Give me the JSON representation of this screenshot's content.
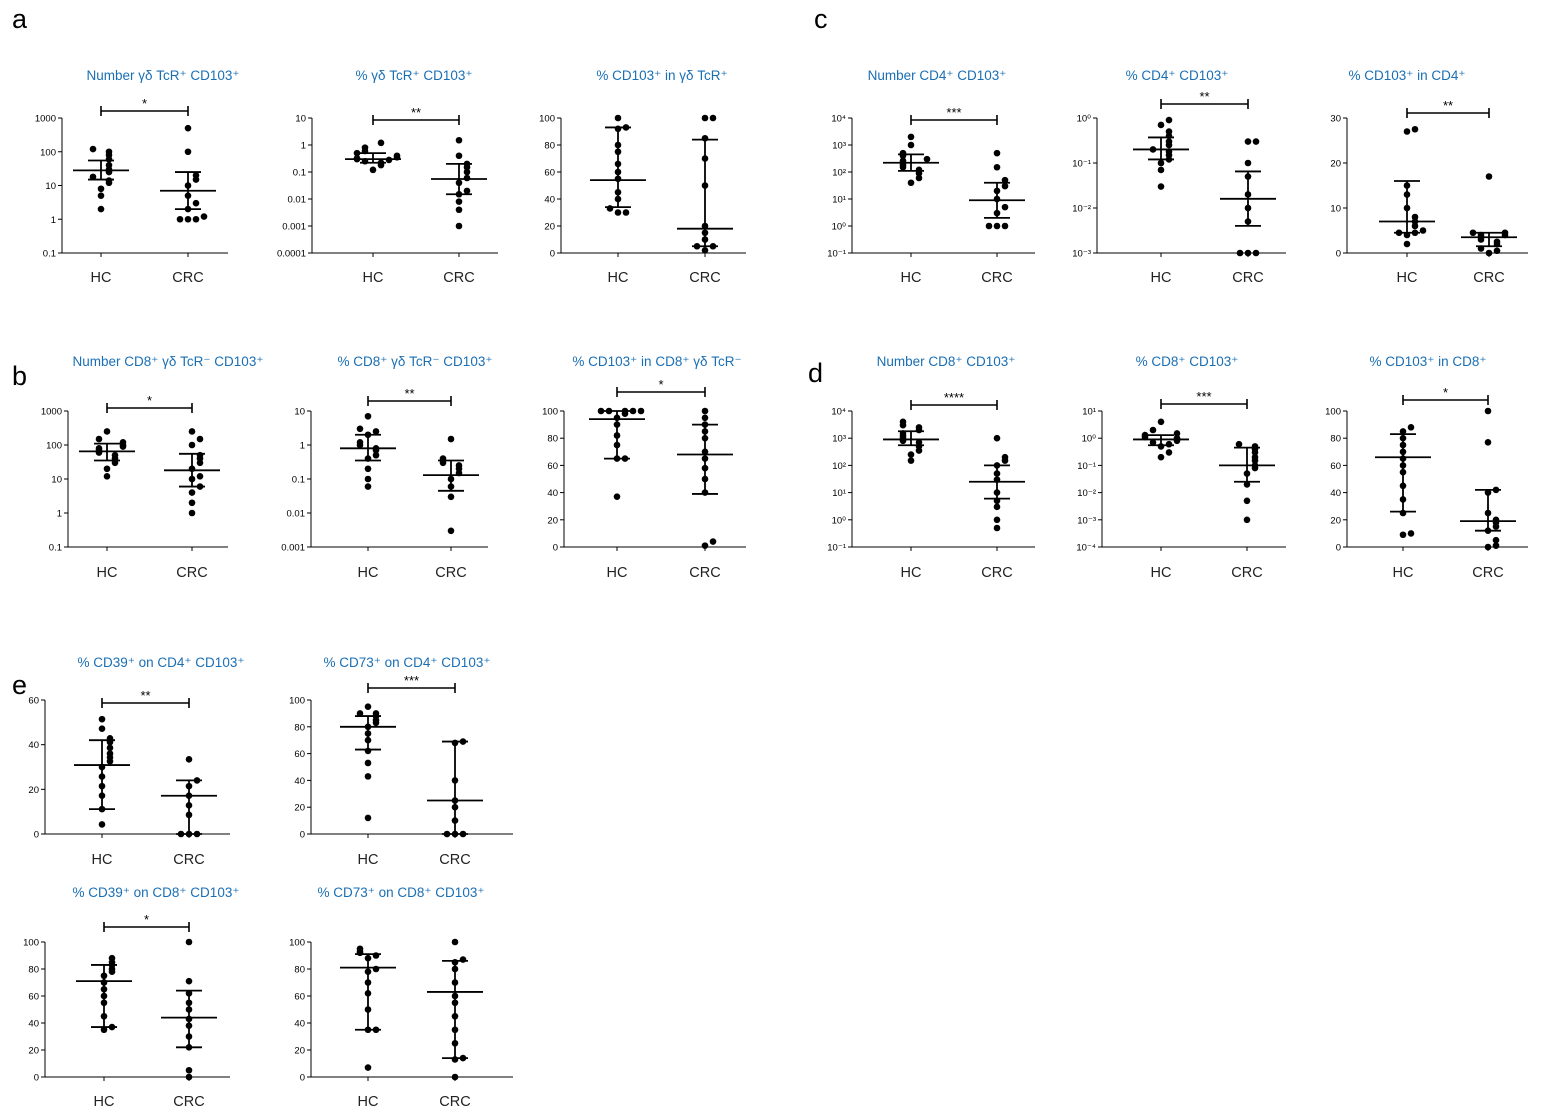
{
  "panel_labels": [
    "a",
    "b",
    "c",
    "d",
    "e"
  ],
  "chart_data": [
    {
      "type": "scatter",
      "panel": "a",
      "title": "Number γδ TcR⁺ CD103⁺",
      "yscale": "log",
      "ylim": [
        0.1,
        1000
      ],
      "yticks": [
        "0.1",
        "1",
        "10",
        "100",
        "1000"
      ],
      "categories": [
        "HC",
        "CRC"
      ],
      "series": [
        {
          "values": [
            2,
            5,
            8,
            12,
            14,
            18,
            25,
            30,
            40,
            60,
            80,
            100,
            120
          ]
        },
        {
          "values": [
            1,
            1,
            1,
            1.2,
            2,
            3,
            5,
            10,
            15,
            20,
            100,
            500
          ]
        }
      ],
      "median": [
        28,
        7
      ],
      "iqr": [
        [
          15,
          55
        ],
        [
          2,
          25
        ]
      ],
      "significance": "*"
    },
    {
      "type": "scatter",
      "panel": "a",
      "title": "% γδ TcR⁺ CD103⁺",
      "yscale": "log",
      "ylim": [
        0.0001,
        10
      ],
      "yticks": [
        "0.0001",
        "0.001",
        "0.01",
        "0.1",
        "1",
        "10"
      ],
      "categories": [
        "HC",
        "CRC"
      ],
      "series": [
        {
          "values": [
            0.12,
            0.18,
            0.22,
            0.25,
            0.28,
            0.3,
            0.32,
            0.35,
            0.4,
            0.5,
            0.6,
            0.8,
            1.2
          ]
        },
        {
          "values": [
            0.001,
            0.004,
            0.008,
            0.015,
            0.02,
            0.04,
            0.06,
            0.1,
            0.15,
            0.2,
            0.4,
            1.5
          ]
        }
      ],
      "median": [
        0.3,
        0.055
      ],
      "iqr": [
        [
          0.22,
          0.5
        ],
        [
          0.015,
          0.2
        ]
      ],
      "significance": "**"
    },
    {
      "type": "scatter",
      "panel": "a",
      "title": "% CD103⁺ in γδ TcR⁺",
      "yscale": "linear",
      "ylim": [
        0,
        100
      ],
      "yticks": [
        "0",
        "20",
        "40",
        "60",
        "80",
        "100"
      ],
      "categories": [
        "HC",
        "CRC"
      ],
      "series": [
        {
          "values": [
            30,
            30,
            33,
            40,
            45,
            55,
            60,
            66,
            75,
            80,
            92,
            93,
            100
          ]
        },
        {
          "values": [
            2,
            5,
            5,
            10,
            15,
            20,
            50,
            70,
            85,
            100,
            100
          ]
        }
      ],
      "median": [
        54,
        18
      ],
      "iqr": [
        [
          34,
          93
        ],
        [
          5,
          84
        ]
      ],
      "significance": ""
    },
    {
      "type": "scatter",
      "panel": "b",
      "title": "Number CD8⁺ γδ TcR⁻ CD103⁺",
      "yscale": "log",
      "ylim": [
        0.1,
        1000
      ],
      "yticks": [
        "0.1",
        "1",
        "10",
        "100",
        "1000"
      ],
      "categories": [
        "HC",
        "CRC"
      ],
      "series": [
        {
          "values": [
            12,
            20,
            30,
            40,
            50,
            60,
            70,
            80,
            90,
            100,
            120,
            150,
            250
          ]
        },
        {
          "values": [
            1,
            2,
            4,
            6,
            10,
            12,
            20,
            30,
            40,
            50,
            100,
            150,
            250
          ]
        }
      ],
      "median": [
        65,
        18
      ],
      "iqr": [
        [
          35,
          110
        ],
        [
          6,
          55
        ]
      ],
      "significance": "*"
    },
    {
      "type": "scatter",
      "panel": "b",
      "title": "% CD8⁺ γδ TcR⁻ CD103⁺",
      "yscale": "log",
      "ylim": [
        0.001,
        10
      ],
      "yticks": [
        "0.001",
        "0.01",
        "0.1",
        "1",
        "10"
      ],
      "categories": [
        "HC",
        "CRC"
      ],
      "series": [
        {
          "values": [
            0.06,
            0.1,
            0.2,
            0.4,
            0.5,
            0.7,
            0.8,
            1,
            1.2,
            2,
            2.5,
            3,
            7
          ]
        },
        {
          "values": [
            0.003,
            0.03,
            0.06,
            0.1,
            0.15,
            0.2,
            0.25,
            0.3,
            0.35,
            0.4,
            1.5
          ]
        }
      ],
      "median": [
        0.8,
        0.13
      ],
      "iqr": [
        [
          0.35,
          2
        ],
        [
          0.045,
          0.35
        ]
      ],
      "significance": "**"
    },
    {
      "type": "scatter",
      "panel": "b",
      "title": "% CD103⁺ in CD8⁺ γδ TcR⁻",
      "yscale": "linear",
      "ylim": [
        0,
        100
      ],
      "yticks": [
        "0",
        "20",
        "40",
        "60",
        "80",
        "100"
      ],
      "categories": [
        "HC",
        "CRC"
      ],
      "series": [
        {
          "values": [
            37,
            65,
            65,
            75,
            82,
            90,
            95,
            98,
            100,
            100,
            100,
            100,
            100
          ]
        },
        {
          "values": [
            1,
            4,
            40,
            50,
            58,
            65,
            70,
            80,
            85,
            90,
            95,
            100
          ]
        }
      ],
      "median": [
        94,
        68
      ],
      "iqr": [
        [
          65,
          100
        ],
        [
          39,
          90
        ]
      ],
      "significance": "*"
    },
    {
      "type": "scatter",
      "panel": "c",
      "title": "Number CD4⁺ CD103⁺",
      "yscale": "log",
      "ylim": [
        0.1,
        10000
      ],
      "yticks": [
        "10⁻¹",
        "10⁰",
        "10¹",
        "10²",
        "10³",
        "10⁴"
      ],
      "categories": [
        "HC",
        "CRC"
      ],
      "series": [
        {
          "values": [
            40,
            60,
            90,
            120,
            150,
            180,
            220,
            260,
            300,
            400,
            500,
            1000,
            2000
          ]
        },
        {
          "values": [
            1,
            1,
            1,
            3,
            5,
            10,
            20,
            30,
            50,
            150,
            500
          ]
        }
      ],
      "median": [
        220,
        9
      ],
      "iqr": [
        [
          110,
          450
        ],
        [
          2,
          40
        ]
      ],
      "significance": "***"
    },
    {
      "type": "scatter",
      "panel": "c",
      "title": "% CD4⁺ CD103⁺",
      "yscale": "log",
      "ylim": [
        0.001,
        1
      ],
      "yticks": [
        "10⁻³",
        "10⁻²",
        "10⁻¹",
        "10⁰"
      ],
      "categories": [
        "HC",
        "CRC"
      ],
      "series": [
        {
          "values": [
            0.03,
            0.07,
            0.1,
            0.12,
            0.15,
            0.18,
            0.2,
            0.25,
            0.3,
            0.4,
            0.5,
            0.7,
            0.9
          ]
        },
        {
          "values": [
            0.001,
            0.001,
            0.001,
            0.005,
            0.01,
            0.02,
            0.05,
            0.1,
            0.3,
            0.3
          ]
        }
      ],
      "median": [
        0.2,
        0.016
      ],
      "iqr": [
        [
          0.12,
          0.37
        ],
        [
          0.004,
          0.065
        ]
      ],
      "significance": "**"
    },
    {
      "type": "scatter",
      "panel": "c",
      "title": "% CD103⁺ in CD4⁺",
      "yscale": "linear",
      "ylim": [
        0,
        30
      ],
      "yticks": [
        "0",
        "10",
        "20",
        "30"
      ],
      "categories": [
        "HC",
        "CRC"
      ],
      "series": [
        {
          "values": [
            2,
            4,
            4.5,
            4.5,
            5,
            6,
            7,
            8,
            10,
            13,
            15,
            27,
            27.5
          ]
        },
        {
          "values": [
            0,
            0.5,
            1,
            2,
            2.5,
            3,
            3.5,
            4,
            4,
            4.5,
            4.5,
            17
          ]
        }
      ],
      "median": [
        7,
        3.5
      ],
      "iqr": [
        [
          4.5,
          16
        ],
        [
          1.5,
          4.5
        ]
      ],
      "significance": "**"
    },
    {
      "type": "scatter",
      "panel": "d",
      "title": "Number CD8⁺ CD103⁺",
      "yscale": "log",
      "ylim": [
        0.1,
        10000
      ],
      "yticks": [
        "10⁻¹",
        "10⁰",
        "10¹",
        "10²",
        "10³",
        "10⁴"
      ],
      "categories": [
        "HC",
        "CRC"
      ],
      "series": [
        {
          "values": [
            150,
            250,
            350,
            500,
            700,
            800,
            1000,
            1200,
            1500,
            2000,
            2500,
            3000,
            4000
          ]
        },
        {
          "values": [
            0.5,
            1,
            3,
            5,
            10,
            30,
            50,
            100,
            150,
            200,
            1000
          ]
        }
      ],
      "median": [
        900,
        25
      ],
      "iqr": [
        [
          550,
          1800
        ],
        [
          6,
          100
        ]
      ],
      "significance": "****"
    },
    {
      "type": "scatter",
      "panel": "d",
      "title": "% CD8⁺ CD103⁺",
      "yscale": "log",
      "ylim": [
        0.0001,
        10
      ],
      "yticks": [
        "10⁻⁴",
        "10⁻³",
        "10⁻²",
        "10⁻¹",
        "10⁰",
        "10¹"
      ],
      "categories": [
        "HC",
        "CRC"
      ],
      "series": [
        {
          "values": [
            0.2,
            0.3,
            0.5,
            0.6,
            0.7,
            0.8,
            0.9,
            1,
            1.1,
            1.3,
            1.5,
            2,
            4
          ]
        },
        {
          "values": [
            0.001,
            0.005,
            0.02,
            0.05,
            0.08,
            0.1,
            0.15,
            0.2,
            0.3,
            0.4,
            0.5,
            0.6
          ]
        }
      ],
      "median": [
        0.9,
        0.1
      ],
      "iqr": [
        [
          0.55,
          1.3
        ],
        [
          0.025,
          0.45
        ]
      ],
      "significance": "***"
    },
    {
      "type": "scatter",
      "panel": "d",
      "title": "% CD103⁺ in CD8⁺",
      "yscale": "linear",
      "ylim": [
        0,
        100
      ],
      "yticks": [
        "0",
        "20",
        "40",
        "60",
        "80",
        "100"
      ],
      "categories": [
        "HC",
        "CRC"
      ],
      "series": [
        {
          "values": [
            9,
            10,
            25,
            35,
            45,
            55,
            60,
            65,
            70,
            75,
            80,
            85,
            88
          ]
        },
        {
          "values": [
            0,
            1,
            5,
            12,
            15,
            18,
            20,
            25,
            40,
            42,
            77,
            100
          ]
        }
      ],
      "median": [
        66,
        19
      ],
      "iqr": [
        [
          26,
          83
        ],
        [
          12,
          42
        ]
      ],
      "significance": "*"
    },
    {
      "type": "scatter",
      "panel": "e",
      "title": "% CD39⁺ on CD4⁺ CD103⁺",
      "yscale": "linear",
      "ylim": [
        0,
        70
      ],
      "yticks": [
        "0",
        "20",
        "40",
        "60"
      ],
      "categories": [
        "HC",
        "CRC"
      ],
      "series": [
        {
          "values": [
            5,
            13,
            20,
            25,
            30,
            35,
            38,
            40,
            42,
            45,
            48,
            50,
            55,
            60
          ]
        },
        {
          "values": [
            0,
            0,
            0,
            10,
            15,
            20,
            25,
            28,
            39
          ]
        }
      ],
      "median": [
        36,
        20
      ],
      "iqr": [
        [
          13,
          49
        ],
        [
          0,
          28
        ]
      ],
      "significance": "**"
    },
    {
      "type": "scatter",
      "panel": "e",
      "title": "% CD73⁺ on CD4⁺ CD103⁺",
      "yscale": "linear",
      "ylim": [
        0,
        100
      ],
      "yticks": [
        "0",
        "20",
        "40",
        "60",
        "80",
        "100"
      ],
      "categories": [
        "HC",
        "CRC"
      ],
      "series": [
        {
          "values": [
            12,
            43,
            53,
            62,
            70,
            75,
            80,
            83,
            85,
            88,
            90,
            90,
            95
          ]
        },
        {
          "values": [
            0,
            0,
            0,
            10,
            20,
            25,
            40,
            68,
            69
          ]
        }
      ],
      "median": [
        80,
        25
      ],
      "iqr": [
        [
          63,
          88
        ],
        [
          0,
          69
        ]
      ],
      "significance": "***"
    },
    {
      "type": "scatter",
      "panel": "e",
      "title": "% CD39⁺ on CD8⁺ CD103⁺",
      "yscale": "linear",
      "ylim": [
        0,
        100
      ],
      "yticks": [
        "0",
        "20",
        "40",
        "60",
        "80",
        "100"
      ],
      "categories": [
        "HC",
        "CRC"
      ],
      "series": [
        {
          "values": [
            35,
            37,
            45,
            55,
            60,
            65,
            70,
            75,
            78,
            80,
            83,
            85,
            88
          ]
        },
        {
          "values": [
            0,
            5,
            22,
            30,
            38,
            43,
            50,
            55,
            62,
            71,
            100
          ]
        }
      ],
      "median": [
        71,
        44
      ],
      "iqr": [
        [
          37,
          83
        ],
        [
          22,
          64
        ]
      ],
      "significance": "*"
    },
    {
      "type": "scatter",
      "panel": "e",
      "title": "% CD73⁺ on CD8⁺ CD103⁺",
      "yscale": "linear",
      "ylim": [
        0,
        100
      ],
      "yticks": [
        "0",
        "20",
        "40",
        "60",
        "80",
        "100"
      ],
      "categories": [
        "HC",
        "CRC"
      ],
      "series": [
        {
          "values": [
            7,
            35,
            35,
            50,
            62,
            70,
            78,
            80,
            88,
            90,
            92,
            93,
            95
          ]
        },
        {
          "values": [
            0,
            13,
            14,
            25,
            35,
            45,
            55,
            60,
            70,
            80,
            85,
            87,
            100
          ]
        }
      ],
      "median": [
        81,
        63
      ],
      "iqr": [
        [
          35,
          91
        ],
        [
          14,
          86
        ]
      ],
      "significance": ""
    }
  ]
}
